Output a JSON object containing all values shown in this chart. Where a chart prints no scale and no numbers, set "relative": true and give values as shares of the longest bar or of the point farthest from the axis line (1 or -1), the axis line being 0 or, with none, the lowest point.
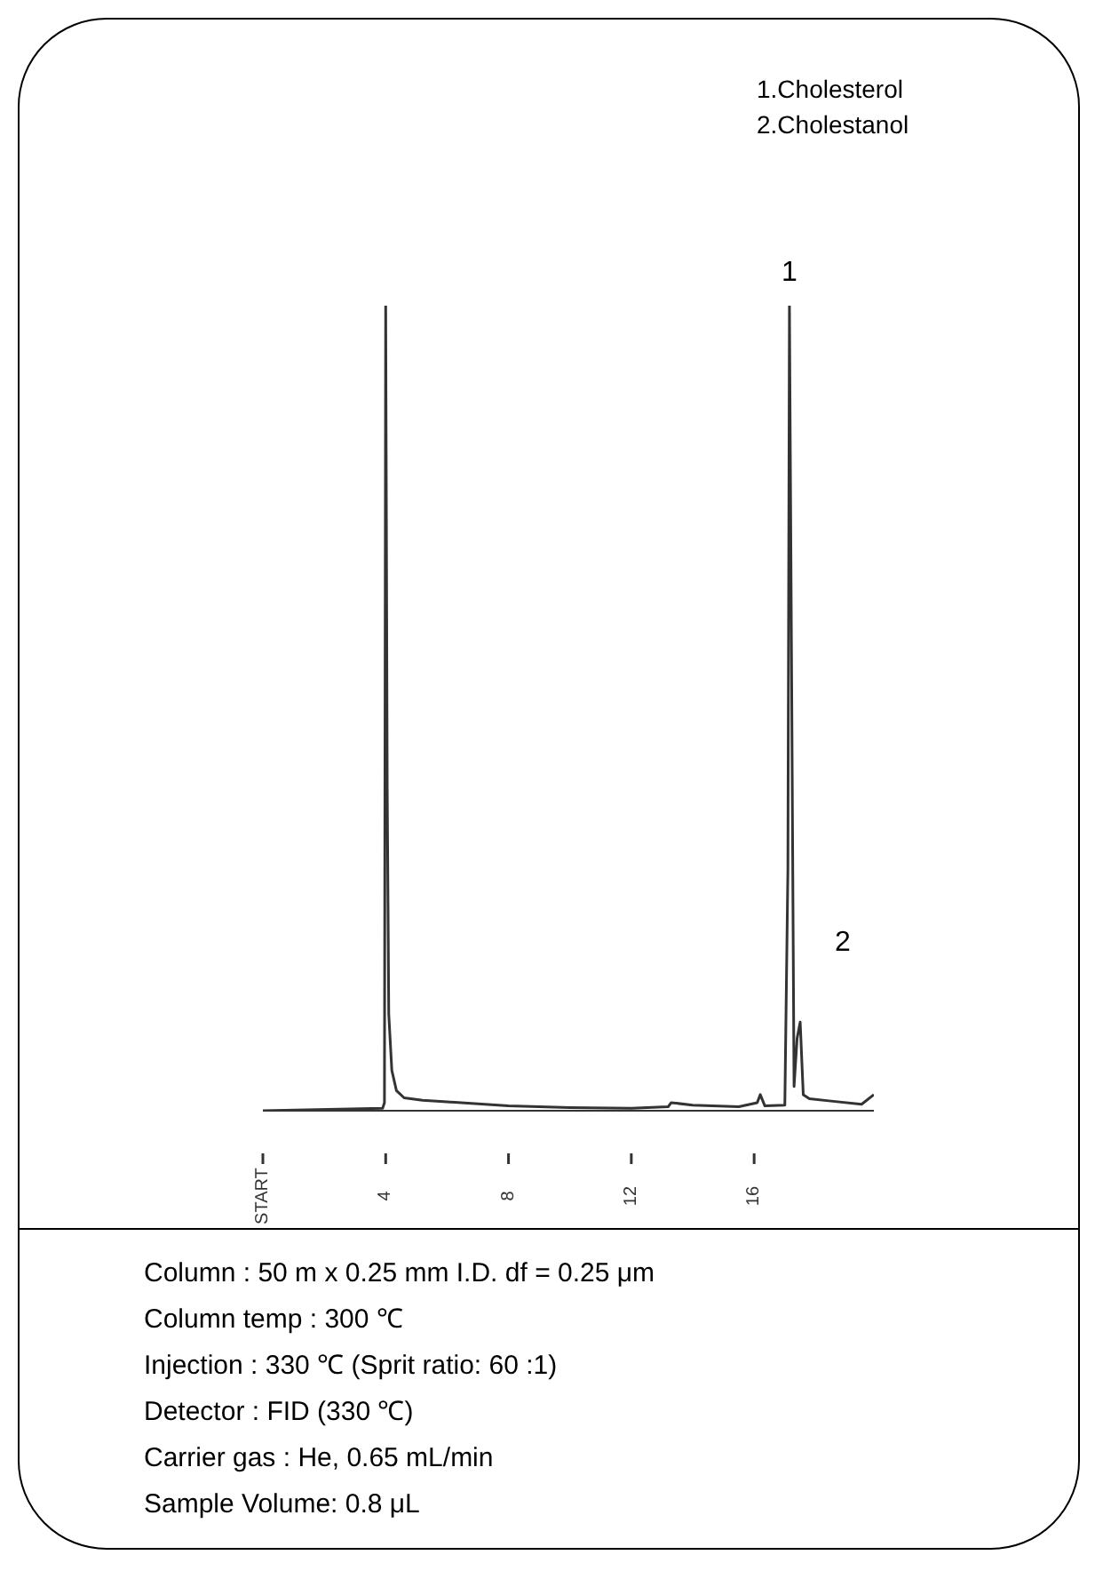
{
  "chart_data": {
    "type": "line",
    "relative": true,
    "xlim": [
      0,
      19.9
    ],
    "xticks": [
      {
        "value": 0,
        "label": "START"
      },
      4,
      8,
      12,
      16
    ],
    "series": [
      {
        "color": "#333333",
        "x": [
          0,
          3.9,
          3.96,
          4.0,
          4.05,
          4.1,
          4.2,
          4.35,
          4.6,
          5.2,
          6,
          8,
          10,
          12,
          13.2,
          13.3,
          14,
          15.5,
          16.1,
          16.2,
          16.35,
          17.0,
          17.1,
          17.15,
          17.3,
          17.4,
          17.5,
          17.6,
          17.8,
          18.5,
          19.5,
          19.9
        ],
        "values": [
          0,
          0.003,
          0.01,
          1,
          0.4,
          0.12,
          0.05,
          0.025,
          0.016,
          0.013,
          0.011,
          0.006,
          0.004,
          0.003,
          0.005,
          0.01,
          0.007,
          0.005,
          0.01,
          0.02,
          0.006,
          0.007,
          0.3,
          1,
          0.03,
          0.09,
          0.11,
          0.02,
          0.015,
          0.012,
          0.008,
          0.02
        ]
      }
    ],
    "annotations": [
      {
        "text": "1",
        "x": 17.15,
        "y": 1
      },
      {
        "text": "2",
        "x": 17.5,
        "y": 0.11
      },
      "1.Cholesterol",
      "2.Cholestanol",
      "Column : 50 m x 0.25 mm I.D. df = 0.25 μm",
      "Column temp : 300 ℃",
      "Injection : 330 ℃ (Sprit ratio: 60 :1)",
      "Detector : FID (330 ℃)",
      "Carrier gas : He, 0.65 mL/min",
      "Sample Volume: 0.8 μL"
    ]
  }
}
